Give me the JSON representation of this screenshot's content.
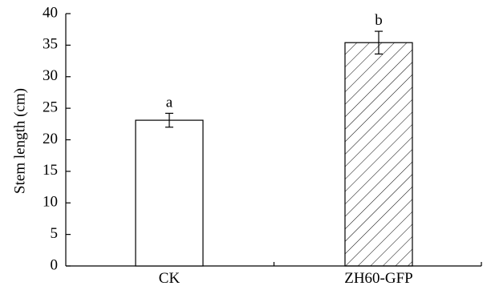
{
  "chart_data": {
    "type": "bar",
    "categories": [
      "CK",
      "ZH60-GFP"
    ],
    "values": [
      23.1,
      35.4
    ],
    "errors": [
      1.1,
      1.8
    ],
    "significance": [
      "a",
      "b"
    ],
    "fills": [
      "none",
      "diagonal-hatch"
    ],
    "title": "",
    "xlabel": "",
    "ylabel": "Stem length (cm)",
    "ylim": [
      0,
      40
    ],
    "yticks": [
      0,
      5,
      10,
      15,
      20,
      25,
      30,
      35,
      40
    ],
    "grid": false,
    "legend": "none"
  }
}
